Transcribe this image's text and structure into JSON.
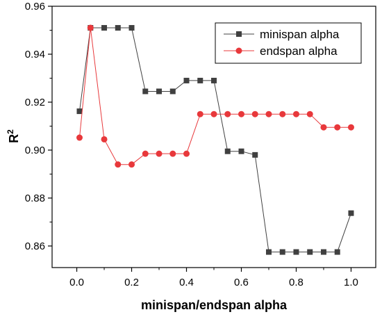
{
  "chart_data": {
    "type": "line",
    "xlabel": "minispan/endspan alpha",
    "ylabel": "R",
    "ylabel_sup": "2",
    "xlim": [
      -0.09,
      1.09
    ],
    "ylim": [
      0.851,
      0.96
    ],
    "x_ticks": [
      0.0,
      0.2,
      0.4,
      0.6,
      0.8,
      1.0
    ],
    "x_tick_labels": [
      "0.0",
      "0.2",
      "0.4",
      "0.6",
      "0.8",
      "1.0"
    ],
    "y_ticks": [
      0.86,
      0.88,
      0.9,
      0.92,
      0.94,
      0.96
    ],
    "y_tick_labels": [
      "0.86",
      "0.88",
      "0.90",
      "0.92",
      "0.94",
      "0.96"
    ],
    "grid": false,
    "legend_position": "top-right",
    "series": [
      {
        "name": "minispan alpha",
        "marker": "square",
        "color": "#404040",
        "x": [
          0.01,
          0.05,
          0.1,
          0.15,
          0.2,
          0.25,
          0.3,
          0.35,
          0.4,
          0.45,
          0.5,
          0.55,
          0.6,
          0.65,
          0.7,
          0.75,
          0.8,
          0.85,
          0.9,
          0.95,
          1.0
        ],
        "values": [
          0.9162,
          0.951,
          0.951,
          0.951,
          0.951,
          0.9245,
          0.9245,
          0.9245,
          0.929,
          0.929,
          0.929,
          0.8995,
          0.8995,
          0.898,
          0.8575,
          0.8575,
          0.8575,
          0.8575,
          0.8575,
          0.8575,
          0.8737
        ]
      },
      {
        "name": "endspan alpha",
        "marker": "circle",
        "color": "#e8383b",
        "x": [
          0.01,
          0.05,
          0.1,
          0.15,
          0.2,
          0.25,
          0.3,
          0.35,
          0.4,
          0.45,
          0.5,
          0.55,
          0.6,
          0.65,
          0.7,
          0.75,
          0.8,
          0.85,
          0.9,
          0.95,
          1.0
        ],
        "values": [
          0.9052,
          0.951,
          0.9045,
          0.894,
          0.894,
          0.8985,
          0.8985,
          0.8985,
          0.8985,
          0.915,
          0.915,
          0.915,
          0.915,
          0.915,
          0.915,
          0.915,
          0.915,
          0.915,
          0.9095,
          0.9095,
          0.9095
        ]
      }
    ]
  }
}
